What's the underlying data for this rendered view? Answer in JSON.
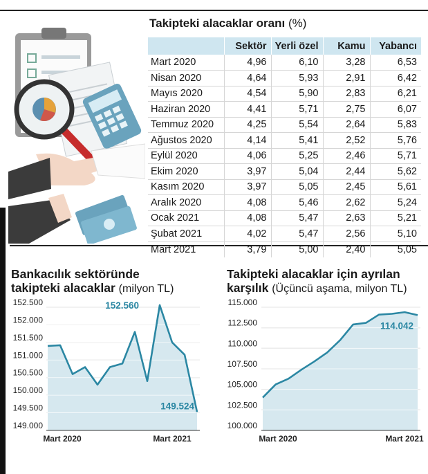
{
  "table": {
    "title": "Takipteki alacaklar oranı",
    "unit": "(%)",
    "headers": [
      "",
      "Sektör",
      "Yerli özel",
      "Kamu",
      "Yabancı"
    ],
    "rows": [
      [
        "Mart 2020",
        "4,96",
        "6,10",
        "3,28",
        "6,53"
      ],
      [
        "Nisan 2020",
        "4,64",
        "5,93",
        "2,91",
        "6,42"
      ],
      [
        "Mayıs 2020",
        "4,54",
        "5,90",
        "2,83",
        "6,21"
      ],
      [
        "Haziran 2020",
        "4,41",
        "5,71",
        "2,75",
        "6,07"
      ],
      [
        "Temmuz 2020",
        "4,25",
        "5,54",
        "2,64",
        "5,83"
      ],
      [
        "Ağustos 2020",
        "4,14",
        "5,41",
        "2,52",
        "5,76"
      ],
      [
        "Eylül 2020",
        "4,06",
        "5,25",
        "2,46",
        "5,71"
      ],
      [
        "Ekim 2020",
        "3,97",
        "5,04",
        "2,44",
        "5,62"
      ],
      [
        "Kasım 2020",
        "3,97",
        "5,05",
        "2,45",
        "5,61"
      ],
      [
        "Aralık 2020",
        "4,08",
        "5,46",
        "2,62",
        "5,24"
      ],
      [
        "Ocak 2021",
        "4,08",
        "5,47",
        "2,63",
        "5,21"
      ],
      [
        "Şubat 2021",
        "4,02",
        "5,47",
        "2,56",
        "5,10"
      ],
      [
        "Mart 2021",
        "3,79",
        "5,00",
        "2,40",
        "5,05"
      ]
    ]
  },
  "colors": {
    "line": "#2b87a3",
    "area": "#d6e8ef",
    "header_bg": "#cfe6f0",
    "annotation": "#2b87a3"
  },
  "chart_data": [
    {
      "type": "area",
      "title_line1": "Bankacılık sektöründe",
      "title_line2": "takipteki alacaklar",
      "unit": "(milyon TL)",
      "y_ticks": [
        "152.500",
        "152.000",
        "151.500",
        "151.000",
        "150.500",
        "150.000",
        "149.500",
        "149.000"
      ],
      "ylim": [
        149000,
        152500
      ],
      "x_labels": [
        "Mart 2020",
        "Mart 2021"
      ],
      "values": [
        151400,
        151420,
        150600,
        150800,
        150300,
        150800,
        150900,
        151800,
        150400,
        152560,
        151500,
        151150,
        149524
      ],
      "annotations": [
        {
          "text": "152.560",
          "index": 9
        },
        {
          "text": "149.524",
          "index": 12
        }
      ],
      "grid": "horizontal"
    },
    {
      "type": "area",
      "title_line1": "Takipteki alacaklar için ayrılan",
      "title_line2": "karşılık",
      "unit": "(Üçüncü aşama, milyon TL)",
      "y_ticks": [
        "115.000",
        "112.500",
        "110.000",
        "107.500",
        "105.000",
        "102.500",
        "100.000"
      ],
      "ylim": [
        100000,
        115000
      ],
      "x_labels": [
        "Mart 2020",
        "Mart 2021"
      ],
      "values": [
        104000,
        105600,
        106300,
        107400,
        108400,
        109500,
        111000,
        112900,
        113100,
        114100,
        114200,
        114400,
        114042
      ],
      "annotations": [
        {
          "text": "114.042",
          "index": 12
        }
      ],
      "grid": "horizontal"
    }
  ]
}
